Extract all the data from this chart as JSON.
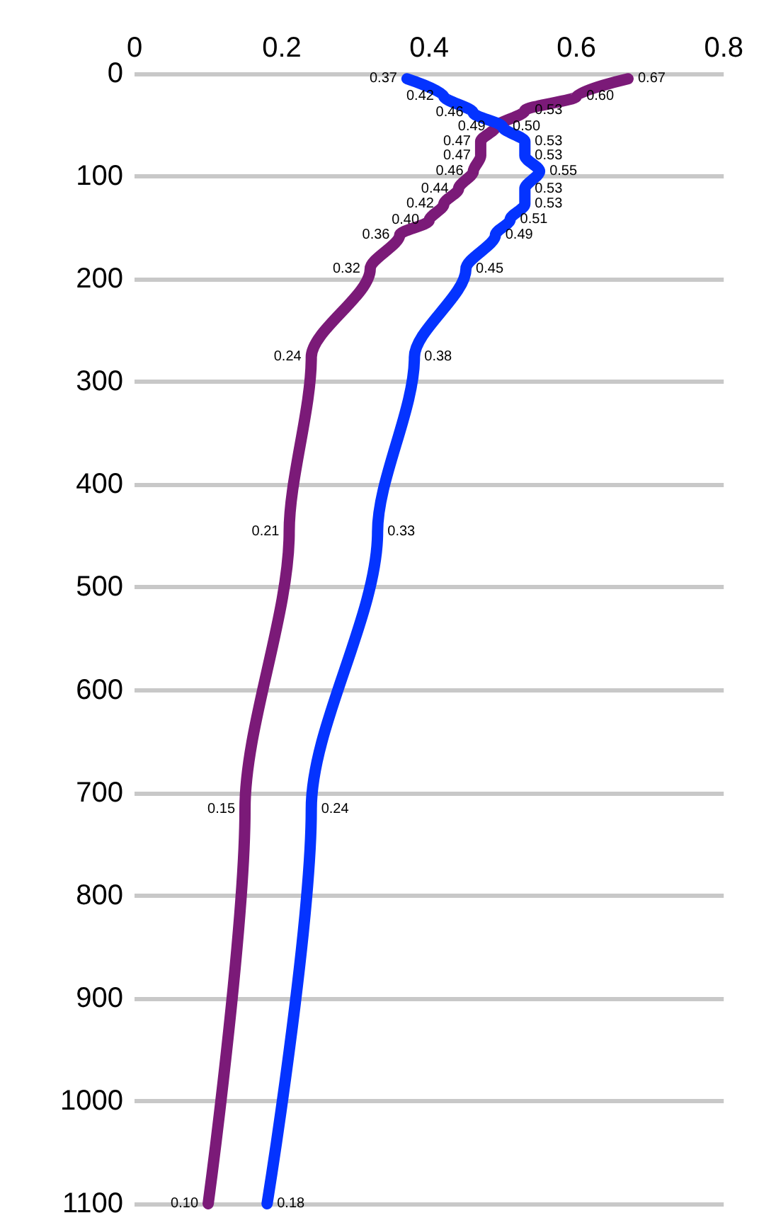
{
  "chart_data": {
    "type": "line",
    "orientation": "horizontal",
    "xlim": [
      0,
      0.8
    ],
    "xticks": [
      0,
      0.2,
      0.4,
      0.6,
      0.8
    ],
    "ylim": [
      1100,
      0
    ],
    "yticks": [
      0,
      100,
      200,
      300,
      400,
      500,
      600,
      700,
      800,
      900,
      1000,
      1100
    ],
    "grid": "y",
    "marker": "none",
    "series": [
      {
        "color": "#7b1a78",
        "x": [
          5,
          22,
          36,
          52,
          66,
          80,
          95,
          112,
          127,
          143,
          157,
          190,
          276,
          446,
          716,
          1100
        ],
        "values": [
          0.67,
          0.6,
          0.53,
          0.49,
          0.47,
          0.47,
          0.46,
          0.44,
          0.42,
          0.4,
          0.36,
          0.32,
          0.24,
          0.21,
          0.15,
          0.1
        ],
        "value_labels": [
          "0.67",
          "0.60",
          "0.53",
          "0.49",
          "0.47",
          "0.47",
          "0.46",
          "0.44",
          "0.42",
          "0.40",
          "0.36",
          "0.32",
          "0.24",
          "0.21",
          "0.15",
          "0.10"
        ]
      },
      {
        "color": "#0433ff",
        "x": [
          5,
          22,
          38,
          52,
          66,
          80,
          95,
          112,
          127,
          142,
          157,
          190,
          276,
          446,
          716,
          1100
        ],
        "values": [
          0.37,
          0.42,
          0.46,
          0.5,
          0.53,
          0.53,
          0.55,
          0.53,
          0.53,
          0.51,
          0.49,
          0.45,
          0.38,
          0.33,
          0.24,
          0.18
        ],
        "value_labels": [
          "0.37",
          "0.42",
          "0.46",
          "0.50",
          "0.53",
          "0.53",
          "0.55",
          "0.53",
          "0.53",
          "0.51",
          "0.49",
          "0.45",
          "0.38",
          "0.33",
          "0.24",
          "0.18"
        ]
      }
    ]
  }
}
